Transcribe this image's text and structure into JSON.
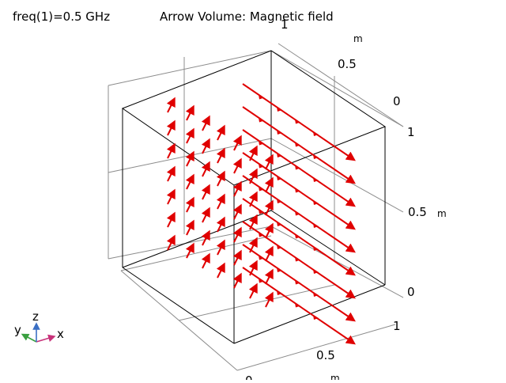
{
  "header": {
    "frequency": "freq(1)=0.5 GHz",
    "title": "Arrow Volume: Magnetic field"
  },
  "plot": {
    "type": "3D arrow volume",
    "arrow_color": "#e00000",
    "box_color": "#000000",
    "grid_color": "#8c8c8c",
    "axes": {
      "x": {
        "ticks": [
          "0",
          "0.5",
          "1"
        ],
        "unit": "m"
      },
      "y": {
        "ticks": [
          "0",
          "0.5",
          "1"
        ],
        "unit": "m"
      },
      "z": {
        "ticks": [
          "0",
          "0.5",
          "1"
        ],
        "unit": "m"
      }
    }
  },
  "triad": {
    "x_label": "x",
    "y_label": "y",
    "z_label": "z",
    "x_color": "#c8327a",
    "y_color": "#3aa040",
    "z_color": "#3a6fc4"
  }
}
